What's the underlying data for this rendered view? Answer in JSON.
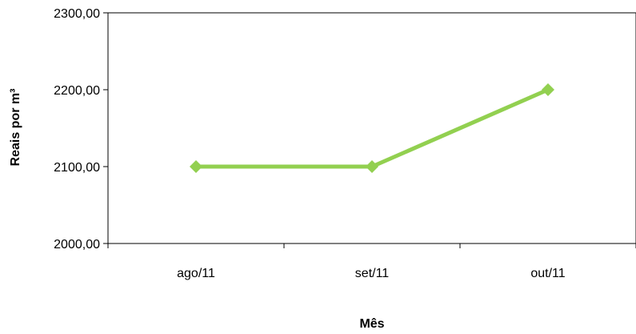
{
  "chart_data": {
    "type": "line",
    "title": "",
    "xlabel": "Mês",
    "ylabel": "Reais por  m³",
    "categories": [
      "ago/11",
      "set/11",
      "out/11"
    ],
    "series": [
      {
        "values": [
          2100,
          2100,
          2200
        ],
        "color": "#92d050",
        "marker": "diamond"
      }
    ],
    "ylim": [
      2000,
      2300
    ],
    "yticks": [
      2000,
      2100,
      2200,
      2300
    ],
    "ytick_labels": [
      "2000,00",
      "2100,00",
      "2200,00",
      "2300,00"
    ],
    "grid": false,
    "legend": "none"
  }
}
